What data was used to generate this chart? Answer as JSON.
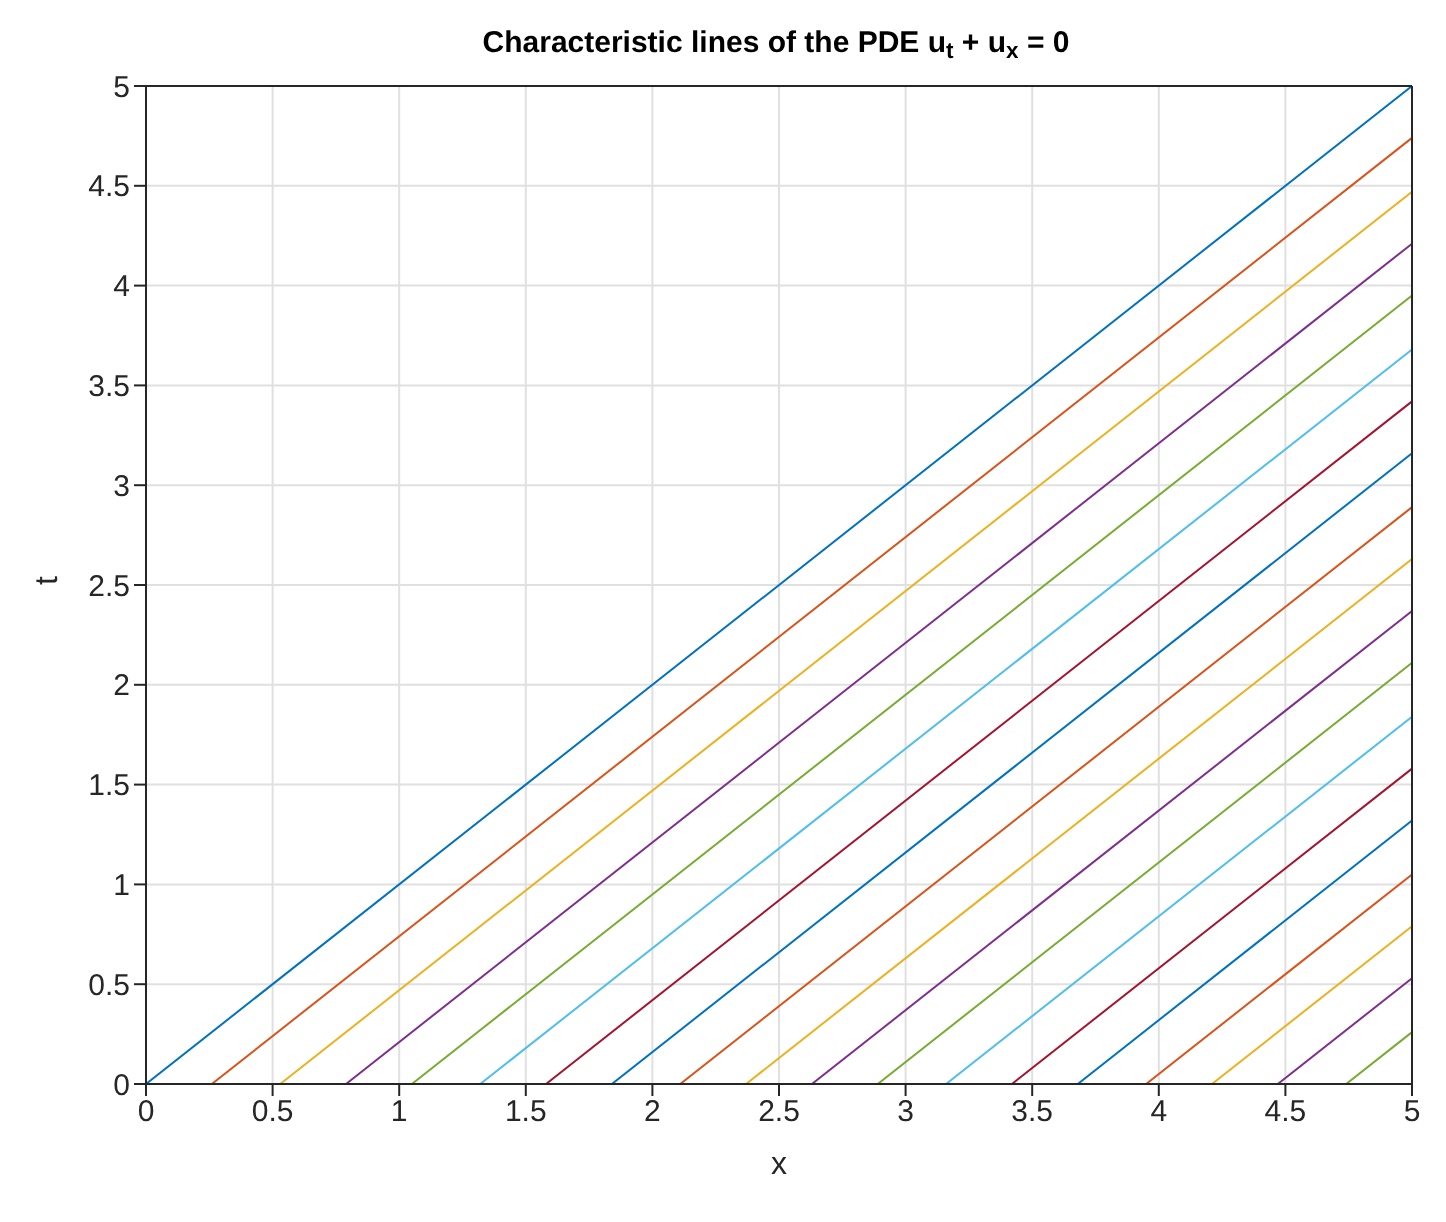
{
  "chart_data": {
    "type": "line",
    "title": "Characteristic lines of the PDE u$_{t}$ + u$_{x}$ = 0",
    "xlabel": "x",
    "ylabel": "t",
    "xlim": [
      0,
      5
    ],
    "ylim": [
      0,
      5
    ],
    "xticks": [
      0,
      0.5,
      1,
      1.5,
      2,
      2.5,
      3,
      3.5,
      4,
      4.5,
      5
    ],
    "yticks": [
      0,
      0.5,
      1,
      1.5,
      2,
      2.5,
      3,
      3.5,
      4,
      4.5,
      5
    ],
    "grid": true,
    "marker": "none",
    "line_style": "solid",
    "series": [
      {
        "color": "#0072bd",
        "x": [
          0,
          5
        ],
        "values": [
          0,
          5
        ]
      },
      {
        "color": "#d95319",
        "x": [
          0.26,
          5
        ],
        "values": [
          0,
          4.74
        ]
      },
      {
        "color": "#edb120",
        "x": [
          0.53,
          5
        ],
        "values": [
          0,
          4.47
        ]
      },
      {
        "color": "#7e2f8e",
        "x": [
          0.79,
          5
        ],
        "values": [
          0,
          4.21
        ]
      },
      {
        "color": "#77ac30",
        "x": [
          1.05,
          5
        ],
        "values": [
          0,
          3.95
        ]
      },
      {
        "color": "#4dbeee",
        "x": [
          1.32,
          5
        ],
        "values": [
          0,
          3.68
        ]
      },
      {
        "color": "#a2142f",
        "x": [
          1.58,
          5
        ],
        "values": [
          0,
          3.42
        ]
      },
      {
        "color": "#0072bd",
        "x": [
          1.84,
          5
        ],
        "values": [
          0,
          3.16
        ]
      },
      {
        "color": "#d95319",
        "x": [
          2.11,
          5
        ],
        "values": [
          0,
          2.89
        ]
      },
      {
        "color": "#edb120",
        "x": [
          2.37,
          5
        ],
        "values": [
          0,
          2.63
        ]
      },
      {
        "color": "#7e2f8e",
        "x": [
          2.63,
          5
        ],
        "values": [
          0,
          2.37
        ]
      },
      {
        "color": "#77ac30",
        "x": [
          2.89,
          5
        ],
        "values": [
          0,
          2.11
        ]
      },
      {
        "color": "#4dbeee",
        "x": [
          3.16,
          5
        ],
        "values": [
          0,
          1.84
        ]
      },
      {
        "color": "#a2142f",
        "x": [
          3.42,
          5
        ],
        "values": [
          0,
          1.58
        ]
      },
      {
        "color": "#0072bd",
        "x": [
          3.68,
          5
        ],
        "values": [
          0,
          1.32
        ]
      },
      {
        "color": "#d95319",
        "x": [
          3.95,
          5
        ],
        "values": [
          0,
          1.05
        ]
      },
      {
        "color": "#edb120",
        "x": [
          4.21,
          5
        ],
        "values": [
          0,
          0.79
        ]
      },
      {
        "color": "#7e2f8e",
        "x": [
          4.47,
          5
        ],
        "values": [
          0,
          0.53
        ]
      },
      {
        "color": "#77ac30",
        "x": [
          4.74,
          5
        ],
        "values": [
          0,
          0.26
        ]
      }
    ]
  }
}
